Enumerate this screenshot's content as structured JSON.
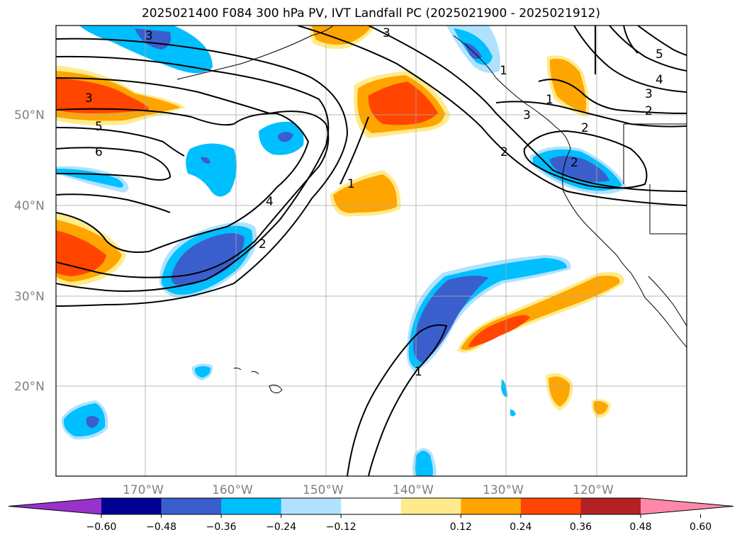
{
  "title": "2025021400 F084 300 hPa PV, IVT Landfall PC (2025021900 - 2025021912)",
  "axes": {
    "lat_labels": [
      "50°N",
      "40°N",
      "30°N",
      "20°N"
    ],
    "lon_labels": [
      "170°W",
      "160°W",
      "150°W",
      "140°W",
      "130°W",
      "120°W"
    ]
  },
  "colorbar": {
    "colors": [
      "#9932cc",
      "#000091",
      "#3a5fcd",
      "#00bfff",
      "#b0e2ff",
      "#ffffff",
      "#ffeb8c",
      "#ffa500",
      "#ff4500",
      "#b22222",
      "#ff88aa"
    ],
    "ticks": [
      "−0.60",
      "−0.48",
      "−0.36",
      "−0.24",
      "−0.12",
      "0.12",
      "0.24",
      "0.36",
      "0.48",
      "0.60"
    ]
  },
  "contour_labels": [
    "3",
    "3",
    "3",
    "5",
    "6",
    "4",
    "2",
    "1",
    "2",
    "1",
    "3",
    "2",
    "5",
    "4",
    "3",
    "2",
    "1",
    "1",
    "2"
  ],
  "anomaly_colors": {
    "pos_light": "#ffeb8c",
    "pos_mid": "#ffa500",
    "pos_strong": "#ff4500",
    "neg_light": "#b0e2ff",
    "neg_mid": "#00bfff",
    "neg_strong": "#3a5fcd"
  }
}
